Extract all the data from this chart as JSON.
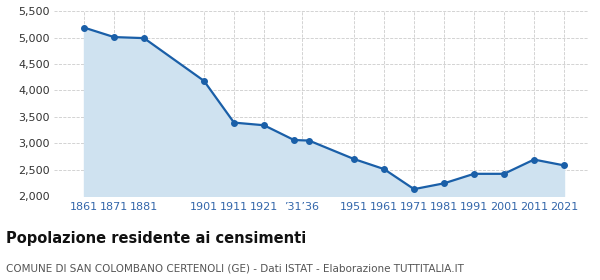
{
  "years": [
    1861,
    1871,
    1881,
    1901,
    1911,
    1921,
    1931,
    1936,
    1951,
    1961,
    1971,
    1981,
    1991,
    2001,
    2011,
    2021
  ],
  "population": [
    5190,
    5010,
    4990,
    4180,
    3390,
    3340,
    3060,
    3050,
    2700,
    2510,
    2130,
    2240,
    2420,
    2420,
    2690,
    2580
  ],
  "x_tick_positions": [
    1861,
    1871,
    1881,
    1901,
    1911,
    1921,
    1933.5,
    1951,
    1961,
    1971,
    1981,
    1991,
    2001,
    2011,
    2021
  ],
  "x_tick_labels": [
    "1861",
    "1871",
    "1881",
    "1901",
    "1911",
    "1921",
    "’31’36",
    "1951",
    "1961",
    "1971",
    "1981",
    "1991",
    "2001",
    "2011",
    "2021"
  ],
  "line_color": "#1a5fa8",
  "fill_color": "#cfe2f0",
  "marker_color": "#1a5fa8",
  "grid_color": "#cccccc",
  "background_color": "#ffffff",
  "ylim": [
    2000,
    5500
  ],
  "yticks": [
    2000,
    2500,
    3000,
    3500,
    4000,
    4500,
    5000,
    5500
  ],
  "xlim_min": 1851,
  "xlim_max": 2029,
  "title": "Popolazione residente ai censimenti",
  "subtitle": "COMUNE DI SAN COLOMBANO CERTENOLI (GE) - Dati ISTAT - Elaborazione TUTTITALIA.IT",
  "title_fontsize": 10.5,
  "subtitle_fontsize": 7.5,
  "tick_label_color": "#3366aa",
  "tick_fontsize": 8,
  "ytick_color": "#333333"
}
